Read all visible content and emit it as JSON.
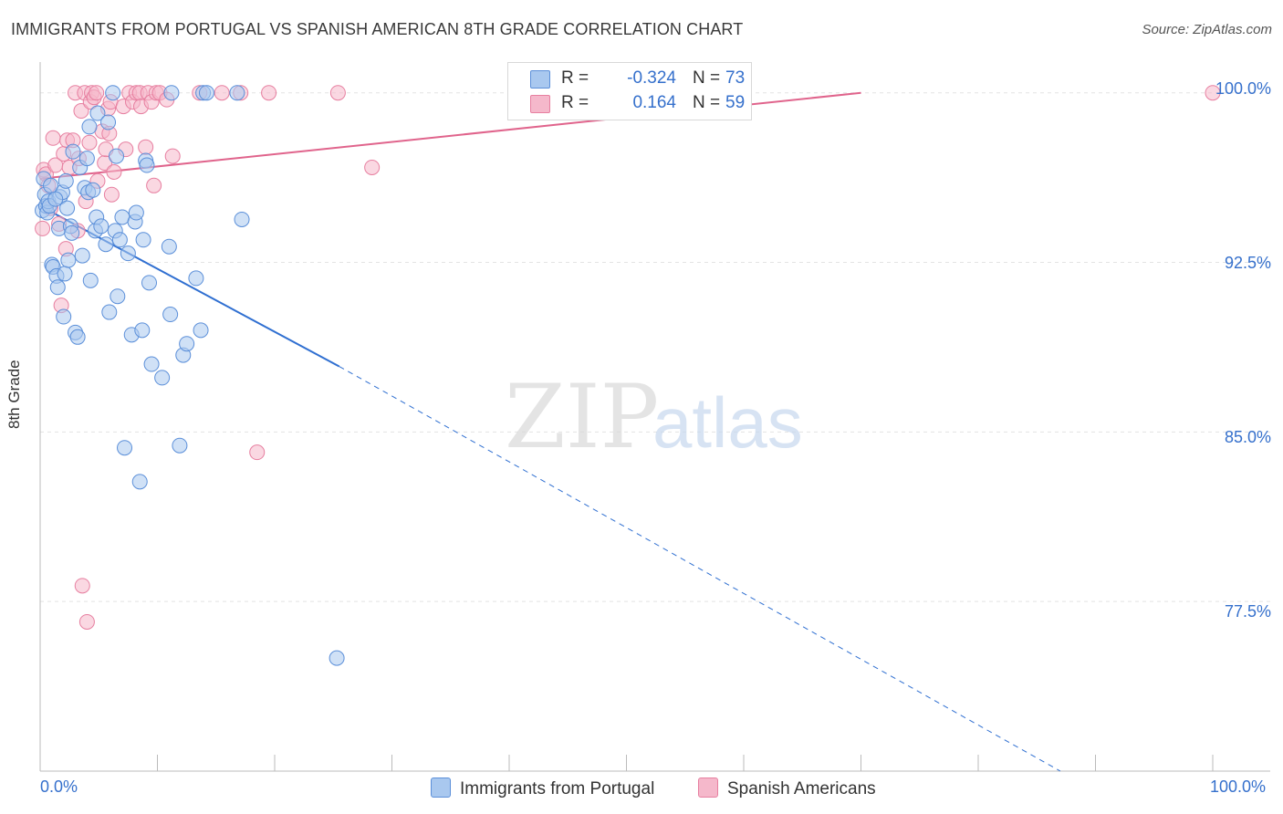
{
  "title": "IMMIGRANTS FROM PORTUGAL VS SPANISH AMERICAN 8TH GRADE CORRELATION CHART",
  "source": "Source: ZipAtlas.com",
  "watermark": {
    "zip": "ZIP",
    "atlas": "atlas"
  },
  "colors": {
    "blue_fill": "#a9c8ef",
    "blue_stroke": "#5b8fd9",
    "blue_line": "#2f6fd1",
    "pink_fill": "#f5b8cb",
    "pink_stroke": "#e77fa0",
    "pink_line": "#e0648c",
    "grid": "#e3e3e3",
    "axis": "#bbbbbb",
    "tick_text": "#3570cc"
  },
  "legend": {
    "r_label": "R =",
    "n_label": "N =",
    "series": [
      {
        "r": "-0.324",
        "n": "73"
      },
      {
        "r": "0.164",
        "n": "59"
      }
    ]
  },
  "chart_data": {
    "type": "scatter",
    "title": "IMMIGRANTS FROM PORTUGAL VS SPANISH AMERICAN 8TH GRADE CORRELATION CHART",
    "xlabel": "",
    "ylabel": "8th Grade",
    "xlim": [
      0,
      100
    ],
    "ylim": [
      70.0,
      101.2
    ],
    "x_tick_labels": [
      "0.0%",
      "100.0%"
    ],
    "y_ticks": [
      100.0,
      92.5,
      85.0,
      77.5
    ],
    "y_tick_labels": [
      "100.0%",
      "92.5%",
      "85.0%",
      "77.5%"
    ],
    "grid": true,
    "series": [
      {
        "name": "Immigrants from Portugal",
        "color": "blue",
        "R": -0.324,
        "N": 73,
        "trend": {
          "x0": 0,
          "y0": 95.0,
          "x1": 25.5,
          "y1": 87.9,
          "dash_to_x": 87,
          "dash_to_y": 70.0
        },
        "points": [
          [
            0.2,
            94.8
          ],
          [
            0.3,
            96.2
          ],
          [
            0.4,
            95.5
          ],
          [
            0.5,
            95.0
          ],
          [
            0.6,
            94.7
          ],
          [
            0.7,
            95.2
          ],
          [
            0.8,
            95.0
          ],
          [
            1.0,
            92.4
          ],
          [
            1.1,
            92.3
          ],
          [
            1.4,
            91.9
          ],
          [
            1.5,
            91.4
          ],
          [
            1.6,
            94.0
          ],
          [
            1.7,
            95.4
          ],
          [
            1.9,
            95.6
          ],
          [
            2.0,
            90.1
          ],
          [
            2.1,
            92.0
          ],
          [
            2.3,
            94.9
          ],
          [
            2.4,
            92.6
          ],
          [
            2.6,
            94.1
          ],
          [
            2.7,
            93.8
          ],
          [
            2.8,
            97.4
          ],
          [
            3.0,
            89.4
          ],
          [
            3.2,
            89.2
          ],
          [
            3.4,
            96.7
          ],
          [
            3.6,
            92.8
          ],
          [
            3.8,
            95.8
          ],
          [
            4.0,
            97.1
          ],
          [
            4.1,
            95.6
          ],
          [
            4.2,
            98.5
          ],
          [
            4.3,
            91.7
          ],
          [
            4.5,
            95.7
          ],
          [
            4.7,
            93.9
          ],
          [
            4.8,
            94.5
          ],
          [
            4.9,
            99.1
          ],
          [
            5.2,
            94.1
          ],
          [
            5.6,
            93.3
          ],
          [
            5.8,
            98.7
          ],
          [
            5.9,
            90.3
          ],
          [
            6.2,
            100.0
          ],
          [
            6.4,
            93.9
          ],
          [
            6.5,
            97.2
          ],
          [
            6.6,
            91.0
          ],
          [
            6.8,
            93.5
          ],
          [
            7.0,
            94.5
          ],
          [
            7.2,
            84.3
          ],
          [
            7.5,
            92.9
          ],
          [
            7.8,
            89.3
          ],
          [
            8.1,
            94.3
          ],
          [
            8.2,
            94.7
          ],
          [
            8.5,
            82.8
          ],
          [
            8.7,
            89.5
          ],
          [
            8.8,
            93.5
          ],
          [
            9.0,
            97.0
          ],
          [
            9.1,
            96.8
          ],
          [
            9.3,
            91.6
          ],
          [
            9.5,
            88.0
          ],
          [
            10.4,
            87.4
          ],
          [
            11.0,
            93.2
          ],
          [
            11.1,
            90.2
          ],
          [
            11.2,
            100.0
          ],
          [
            11.9,
            84.4
          ],
          [
            12.2,
            88.4
          ],
          [
            12.5,
            88.9
          ],
          [
            13.3,
            91.8
          ],
          [
            13.7,
            89.5
          ],
          [
            13.9,
            100.0
          ],
          [
            14.2,
            100.0
          ],
          [
            16.8,
            100.0
          ],
          [
            17.2,
            94.4
          ],
          [
            25.3,
            75.0
          ],
          [
            1.3,
            95.3
          ],
          [
            2.2,
            96.1
          ],
          [
            0.9,
            95.9
          ]
        ]
      },
      {
        "name": "Spanish Americans",
        "color": "pink",
        "R": 0.164,
        "N": 59,
        "trend": {
          "x0": 0,
          "y0": 96.2,
          "x1": 70,
          "y1": 100.0
        },
        "points": [
          [
            0.2,
            94.0
          ],
          [
            0.3,
            96.6
          ],
          [
            0.5,
            96.4
          ],
          [
            0.7,
            95.9
          ],
          [
            0.9,
            94.9
          ],
          [
            1.1,
            98.0
          ],
          [
            1.3,
            96.8
          ],
          [
            1.6,
            94.2
          ],
          [
            1.8,
            90.6
          ],
          [
            2.0,
            97.3
          ],
          [
            2.2,
            93.1
          ],
          [
            2.3,
            97.9
          ],
          [
            2.5,
            96.7
          ],
          [
            2.8,
            97.9
          ],
          [
            3.0,
            100.0
          ],
          [
            3.2,
            93.9
          ],
          [
            3.3,
            97.1
          ],
          [
            3.5,
            99.2
          ],
          [
            3.6,
            78.2
          ],
          [
            3.8,
            100.0
          ],
          [
            3.9,
            95.2
          ],
          [
            4.0,
            76.6
          ],
          [
            4.2,
            97.8
          ],
          [
            4.3,
            99.6
          ],
          [
            4.4,
            100.0
          ],
          [
            4.6,
            99.8
          ],
          [
            4.8,
            100.0
          ],
          [
            4.9,
            96.1
          ],
          [
            5.3,
            98.3
          ],
          [
            5.5,
            96.9
          ],
          [
            5.6,
            97.5
          ],
          [
            5.8,
            99.3
          ],
          [
            5.9,
            98.2
          ],
          [
            6.0,
            99.6
          ],
          [
            6.1,
            95.5
          ],
          [
            6.3,
            96.5
          ],
          [
            7.1,
            99.4
          ],
          [
            7.3,
            97.5
          ],
          [
            7.6,
            100.0
          ],
          [
            7.9,
            99.6
          ],
          [
            8.2,
            100.0
          ],
          [
            8.5,
            100.0
          ],
          [
            8.6,
            99.4
          ],
          [
            9.0,
            97.6
          ],
          [
            9.2,
            100.0
          ],
          [
            9.5,
            99.6
          ],
          [
            9.7,
            95.9
          ],
          [
            9.9,
            100.0
          ],
          [
            10.2,
            100.0
          ],
          [
            10.8,
            99.7
          ],
          [
            11.3,
            97.2
          ],
          [
            13.6,
            100.0
          ],
          [
            15.5,
            100.0
          ],
          [
            18.5,
            84.1
          ],
          [
            19.5,
            100.0
          ],
          [
            25.4,
            100.0
          ],
          [
            28.3,
            96.7
          ],
          [
            100.0,
            100.0
          ],
          [
            17.1,
            100.0
          ]
        ]
      }
    ]
  },
  "bottom_legend": [
    {
      "label": "Immigrants from Portugal"
    },
    {
      "label": "Spanish Americans"
    }
  ]
}
